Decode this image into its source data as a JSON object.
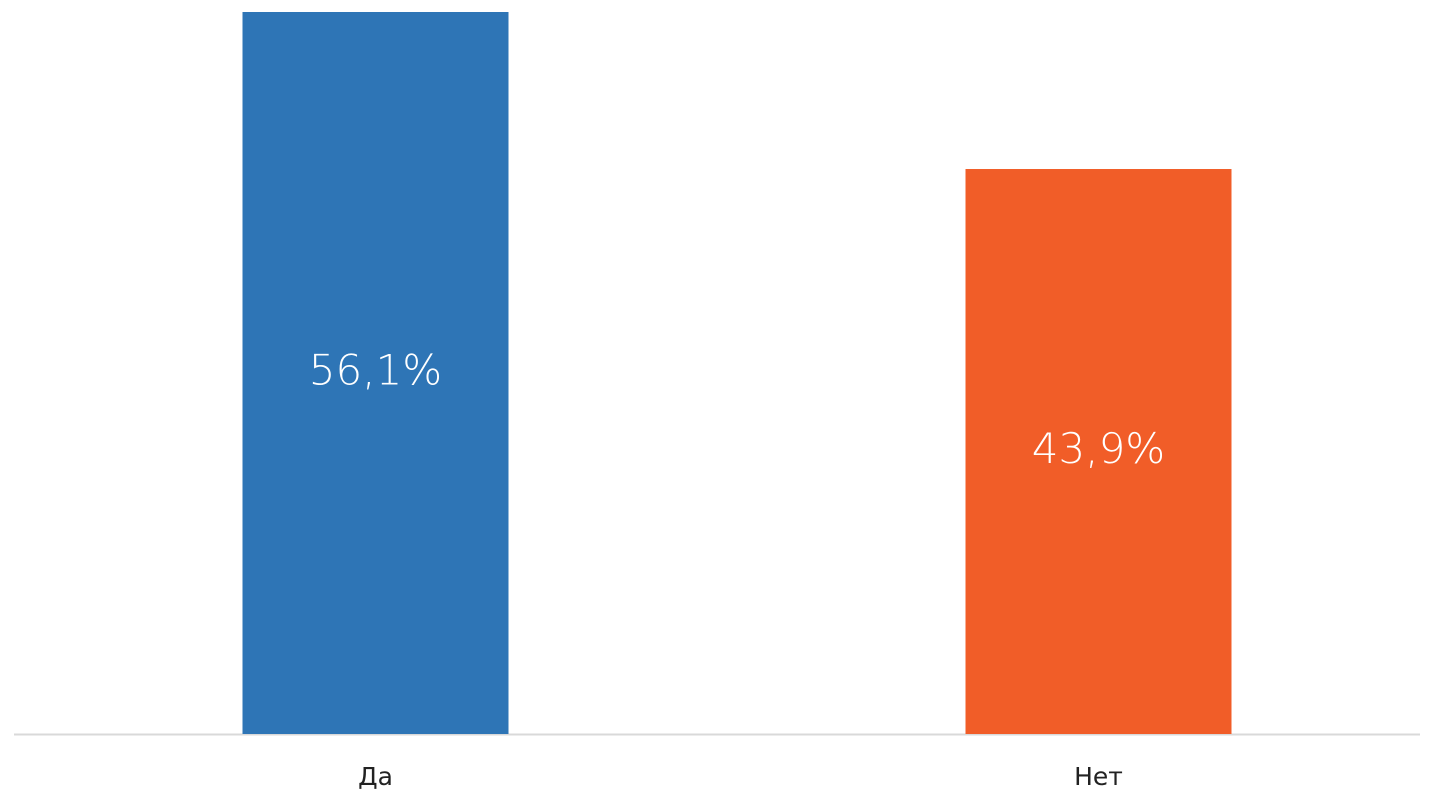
{
  "chart_data": {
    "type": "bar",
    "categories": [
      "Да",
      "Нет"
    ],
    "values": [
      56.1,
      43.9
    ],
    "value_labels": [
      "56,1%",
      "43,9%"
    ],
    "colors": [
      "#2e75b6",
      "#f15d28"
    ],
    "ylim": [
      0,
      56.1
    ]
  }
}
